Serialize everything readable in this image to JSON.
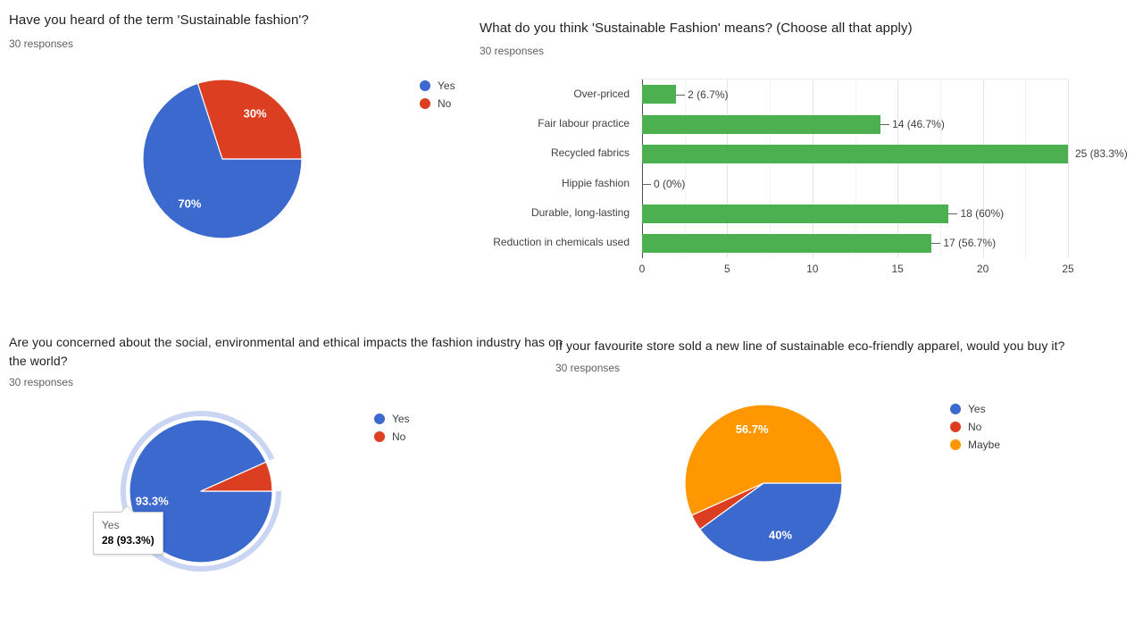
{
  "chart_data": [
    {
      "type": "pie",
      "title": "Have you heard of the term 'Sustainable fashion'?",
      "responses": "30 responses",
      "legend": {
        "position": "right",
        "entries": [
          "Yes",
          "No"
        ]
      },
      "slices": [
        {
          "label": "Yes",
          "pct": 70,
          "display": "70%",
          "color": "#3B69CE"
        },
        {
          "label": "No",
          "pct": 30,
          "display": "30%",
          "color": "#DC3E22"
        }
      ]
    },
    {
      "type": "bar",
      "orientation": "horizontal",
      "title": "What do you think 'Sustainable Fashion' means? (Choose all that apply)",
      "responses": "30 responses",
      "bar_color": "#4CAF50",
      "categories": [
        "Over-priced",
        "Fair labour practice",
        "Recycled fabrics",
        "Hippie fashion",
        "Durable, long-lasting",
        "Reduction in chemicals used"
      ],
      "values": [
        2,
        14,
        25,
        0,
        18,
        17
      ],
      "value_labels": [
        "2 (6.7%)",
        "14 (46.7%)",
        "25 (83.3%)",
        "0 (0%)",
        "18 (60%)",
        "17 (56.7%)"
      ],
      "axis": {
        "xmin": 0,
        "xmax": 25,
        "ticks": [
          0,
          5,
          10,
          15,
          20,
          25
        ],
        "minor_step": 2.5,
        "grid": true
      }
    },
    {
      "type": "pie",
      "title": "Are you concerned about the social, environmental and ethical impacts the fashion industry has on the world?",
      "responses": "30 responses",
      "legend": {
        "position": "right",
        "entries": [
          "Yes",
          "No"
        ]
      },
      "slices": [
        {
          "label": "Yes",
          "pct": 93.3,
          "display": "93.3%",
          "color": "#3B69CE"
        },
        {
          "label": "No",
          "pct": 6.7,
          "display": "",
          "color": "#DC3E22"
        }
      ],
      "hover": {
        "slice": "Yes",
        "ring_color": "#C9D5F3"
      },
      "tooltip": {
        "label": "Yes",
        "value_display": "28 (93.3%)"
      }
    },
    {
      "type": "pie",
      "title": "If your favourite store sold a new line of sustainable eco-friendly apparel, would you buy it?",
      "responses": "30 responses",
      "legend": {
        "position": "right",
        "entries": [
          "Yes",
          "No",
          "Maybe"
        ]
      },
      "slices": [
        {
          "label": "Yes",
          "pct": 40,
          "display": "40%",
          "color": "#3B69CE"
        },
        {
          "label": "No",
          "pct": 3.3,
          "display": "",
          "color": "#DC3E22"
        },
        {
          "label": "Maybe",
          "pct": 56.7,
          "display": "56.7%",
          "color": "#FF9800"
        }
      ]
    }
  ]
}
